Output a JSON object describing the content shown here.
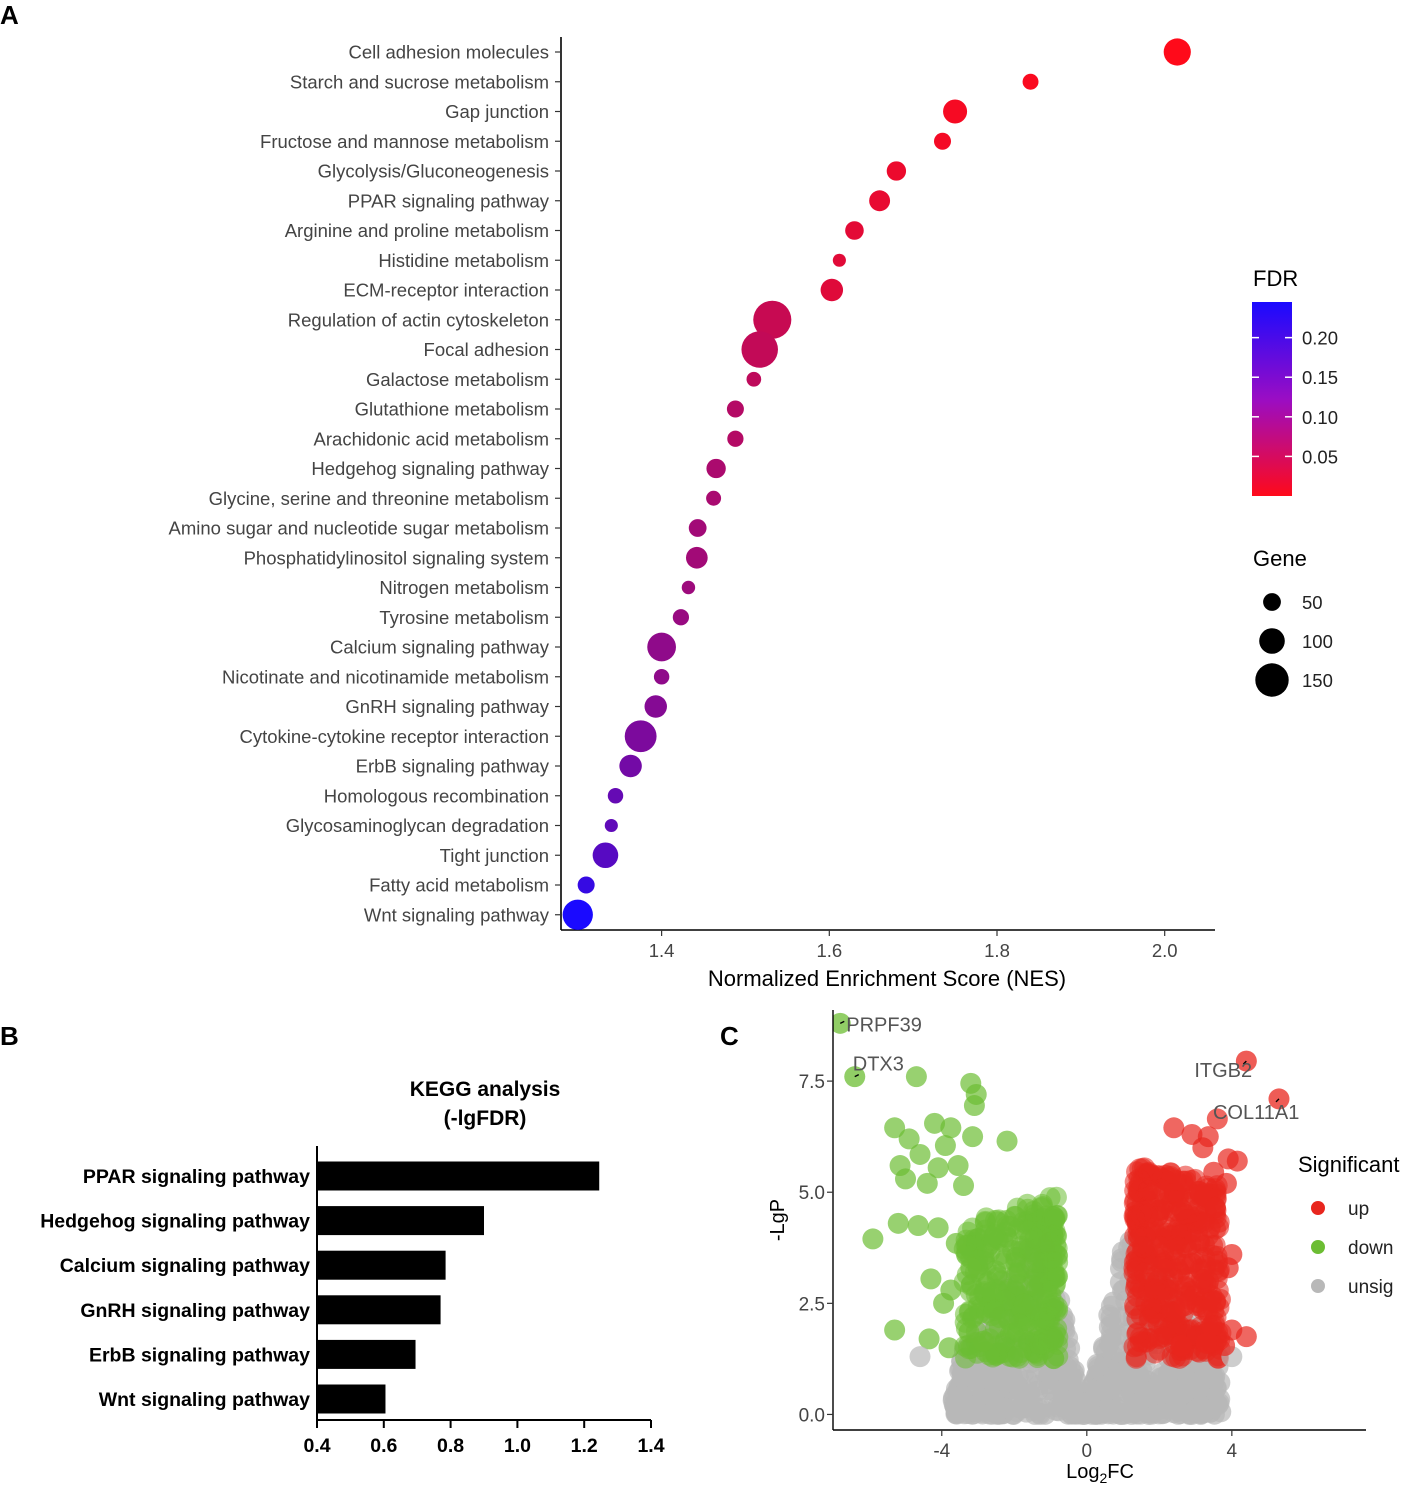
{
  "chart_data": [
    {
      "panel": "A",
      "type": "scatter",
      "subtype": "dot-plot",
      "xlabel": "Normalized Enrichment Score (NES)",
      "xlim": [
        1.28,
        2.06
      ],
      "xticks": [
        1.4,
        1.6,
        1.8,
        2.0
      ],
      "xtick_labels": [
        "1.4",
        "1.6",
        "1.8",
        "2.0"
      ],
      "colors": {
        "low_fdr": "#ff0a1a",
        "high_fdr": "#1a0aff"
      },
      "fdr_range": [
        0.0,
        0.245
      ],
      "legend_fdr": {
        "title": "FDR",
        "ticks": [
          0.2,
          0.15,
          0.1,
          0.05
        ],
        "tick_labels": [
          "0.20",
          "0.15",
          "0.10",
          "0.05"
        ]
      },
      "legend_gene": {
        "title": "Gene",
        "sizes": [
          50,
          100,
          150
        ],
        "labels": [
          "50",
          "100",
          "150"
        ]
      },
      "legend_placement": "right",
      "pathways": [
        {
          "name": "Cell adhesion molecules",
          "nes": 2.015,
          "fdr": 0.0,
          "gene": 110
        },
        {
          "name": "Starch and sucrose metabolism",
          "nes": 1.84,
          "fdr": 0.005,
          "gene": 38
        },
        {
          "name": "Gap junction",
          "nes": 1.75,
          "fdr": 0.01,
          "gene": 90
        },
        {
          "name": "Fructose and mannose metabolism",
          "nes": 1.735,
          "fdr": 0.012,
          "gene": 45
        },
        {
          "name": "Glycolysis/Gluconeogenesis",
          "nes": 1.68,
          "fdr": 0.02,
          "gene": 60
        },
        {
          "name": "PPAR signaling pathway",
          "nes": 1.66,
          "fdr": 0.025,
          "gene": 70
        },
        {
          "name": "Arginine and proline metabolism",
          "nes": 1.63,
          "fdr": 0.03,
          "gene": 55
        },
        {
          "name": "Histidine metabolism",
          "nes": 1.612,
          "fdr": 0.032,
          "gene": 20
        },
        {
          "name": "ECM-receptor interaction",
          "nes": 1.603,
          "fdr": 0.034,
          "gene": 80
        },
        {
          "name": "Regulation of actin cytoskeleton",
          "nes": 1.532,
          "fdr": 0.06,
          "gene": 180
        },
        {
          "name": "Focal adhesion",
          "nes": 1.517,
          "fdr": 0.065,
          "gene": 170
        },
        {
          "name": "Galactose metabolism",
          "nes": 1.51,
          "fdr": 0.07,
          "gene": 30
        },
        {
          "name": "Glutathione metabolism",
          "nes": 1.488,
          "fdr": 0.08,
          "gene": 45
        },
        {
          "name": "Arachidonic acid metabolism",
          "nes": 1.488,
          "fdr": 0.08,
          "gene": 40
        },
        {
          "name": "Hedgehog signaling pathway",
          "nes": 1.465,
          "fdr": 0.09,
          "gene": 60
        },
        {
          "name": "Glycine, serine and threonine metabolism",
          "nes": 1.462,
          "fdr": 0.092,
          "gene": 32
        },
        {
          "name": "Amino sugar and nucleotide sugar metabolism",
          "nes": 1.443,
          "fdr": 0.1,
          "gene": 50
        },
        {
          "name": "Phosphatidylinositol signaling system",
          "nes": 1.442,
          "fdr": 0.1,
          "gene": 75
        },
        {
          "name": "Nitrogen metabolism",
          "nes": 1.432,
          "fdr": 0.105,
          "gene": 22
        },
        {
          "name": "Tyrosine metabolism",
          "nes": 1.423,
          "fdr": 0.11,
          "gene": 40
        },
        {
          "name": "Calcium signaling pathway",
          "nes": 1.4,
          "fdr": 0.12,
          "gene": 120
        },
        {
          "name": "Nicotinate and nicotinamide metabolism",
          "nes": 1.4,
          "fdr": 0.12,
          "gene": 35
        },
        {
          "name": "GnRH signaling pathway",
          "nes": 1.393,
          "fdr": 0.13,
          "gene": 80
        },
        {
          "name": "Cytokine-cytokine receptor interaction",
          "nes": 1.375,
          "fdr": 0.14,
          "gene": 140
        },
        {
          "name": "ErbB signaling pathway",
          "nes": 1.363,
          "fdr": 0.15,
          "gene": 80
        },
        {
          "name": "Homologous recombination",
          "nes": 1.345,
          "fdr": 0.165,
          "gene": 35
        },
        {
          "name": "Glycosaminoglycan degradation",
          "nes": 1.34,
          "fdr": 0.17,
          "gene": 20
        },
        {
          "name": "Tight junction",
          "nes": 1.333,
          "fdr": 0.18,
          "gene": 100
        },
        {
          "name": "Fatty acid metabolism",
          "nes": 1.31,
          "fdr": 0.215,
          "gene": 45
        },
        {
          "name": "Wnt signaling pathway",
          "nes": 1.3,
          "fdr": 0.245,
          "gene": 130
        }
      ]
    },
    {
      "panel": "B",
      "type": "bar",
      "orientation": "horizontal",
      "title": "KEGG analysis\n(-lgFDR)",
      "title_lines": [
        "KEGG analysis",
        "(-lgFDR)"
      ],
      "xlim": [
        0.4,
        1.4
      ],
      "xticks": [
        0.4,
        0.6,
        0.8,
        1.0,
        1.2,
        1.4
      ],
      "xtick_labels": [
        "0.4",
        "0.6",
        "0.8",
        "1.0",
        "1.2",
        "1.4"
      ],
      "categories": [
        "PPAR signaling pathway",
        "Hedgehog signaling pathway",
        "Calcium signaling pathway",
        "GnRH signaling pathway",
        "ErbB signaling pathway",
        "Wnt signaling pathway"
      ],
      "values": [
        1.245,
        0.9,
        0.785,
        0.77,
        0.695,
        0.605
      ],
      "bar_color": "#000000"
    },
    {
      "panel": "C",
      "type": "scatter",
      "subtype": "volcano",
      "xlabel_base": "Log",
      "xlabel_sub": "2",
      "xlabel_tail": "FC",
      "ylabel": "-LgP",
      "xlim": [
        -7.0,
        7.7
      ],
      "ylim": [
        -0.35,
        9.1
      ],
      "xticks": [
        -4,
        0,
        4
      ],
      "xtick_labels": [
        "-4",
        "0",
        "4"
      ],
      "yticks": [
        0.0,
        2.5,
        5.0,
        7.5
      ],
      "ytick_labels": [
        "0.0",
        "2.5",
        "5.0",
        "7.5"
      ],
      "colors": {
        "up": "#e8261e",
        "down": "#6cbd33",
        "unsig": "#b8b8b8"
      },
      "legend": {
        "title": "Significant",
        "entries": [
          {
            "key": "up",
            "label": "up"
          },
          {
            "key": "down",
            "label": "down"
          },
          {
            "key": "unsig",
            "label": "unsig"
          }
        ],
        "placement": "right"
      },
      "labeled_genes": [
        {
          "name": "PRPF39",
          "x": -6.8,
          "y": 8.8,
          "group": "down"
        },
        {
          "name": "DTX3",
          "x": -6.4,
          "y": 7.6,
          "group": "down"
        },
        {
          "name": "ITGB2",
          "x": 4.4,
          "y": 7.95,
          "group": "up"
        },
        {
          "name": "COL11A1",
          "x": 5.3,
          "y": 7.1,
          "group": "up"
        }
      ],
      "notable_points": [
        {
          "x": -4.7,
          "y": 7.6,
          "group": "down"
        },
        {
          "x": -3.2,
          "y": 7.45,
          "group": "down"
        },
        {
          "x": -3.05,
          "y": 7.2,
          "group": "down"
        },
        {
          "x": -3.1,
          "y": 6.95,
          "group": "down"
        },
        {
          "x": -5.3,
          "y": 6.45,
          "group": "down"
        },
        {
          "x": -4.2,
          "y": 6.55,
          "group": "down"
        },
        {
          "x": -3.75,
          "y": 6.45,
          "group": "down"
        },
        {
          "x": -3.15,
          "y": 6.25,
          "group": "down"
        },
        {
          "x": -2.2,
          "y": 6.15,
          "group": "down"
        },
        {
          "x": -4.9,
          "y": 6.2,
          "group": "down"
        },
        {
          "x": -3.9,
          "y": 6.05,
          "group": "down"
        },
        {
          "x": -4.6,
          "y": 5.85,
          "group": "down"
        },
        {
          "x": -5.15,
          "y": 5.6,
          "group": "down"
        },
        {
          "x": -4.1,
          "y": 5.55,
          "group": "down"
        },
        {
          "x": -3.55,
          "y": 5.6,
          "group": "down"
        },
        {
          "x": -5.0,
          "y": 5.3,
          "group": "down"
        },
        {
          "x": -4.4,
          "y": 5.2,
          "group": "down"
        },
        {
          "x": -3.4,
          "y": 5.15,
          "group": "down"
        },
        {
          "x": -5.2,
          "y": 4.3,
          "group": "down"
        },
        {
          "x": -4.65,
          "y": 4.25,
          "group": "down"
        },
        {
          "x": -4.1,
          "y": 4.2,
          "group": "down"
        },
        {
          "x": -3.6,
          "y": 3.85,
          "group": "down"
        },
        {
          "x": -5.9,
          "y": 3.95,
          "group": "down"
        },
        {
          "x": -4.3,
          "y": 3.05,
          "group": "down"
        },
        {
          "x": -3.2,
          "y": 3.3,
          "group": "down"
        },
        {
          "x": -3.75,
          "y": 2.8,
          "group": "down"
        },
        {
          "x": -3.95,
          "y": 2.5,
          "group": "down"
        },
        {
          "x": -5.3,
          "y": 1.9,
          "group": "down"
        },
        {
          "x": -4.35,
          "y": 1.7,
          "group": "down"
        },
        {
          "x": -3.8,
          "y": 1.5,
          "group": "down"
        },
        {
          "x": -3.25,
          "y": 1.85,
          "group": "down"
        },
        {
          "x": -2.85,
          "y": 1.65,
          "group": "down"
        },
        {
          "x": -4.6,
          "y": 1.3,
          "group": "unsig"
        },
        {
          "x": 4.0,
          "y": 1.3,
          "group": "unsig"
        },
        {
          "x": 3.6,
          "y": 6.65,
          "group": "up"
        },
        {
          "x": 3.35,
          "y": 6.25,
          "group": "up"
        },
        {
          "x": 2.9,
          "y": 6.3,
          "group": "up"
        },
        {
          "x": 2.4,
          "y": 6.45,
          "group": "up"
        },
        {
          "x": 3.2,
          "y": 6.0,
          "group": "up"
        },
        {
          "x": 3.9,
          "y": 5.75,
          "group": "up"
        },
        {
          "x": 4.15,
          "y": 5.7,
          "group": "up"
        },
        {
          "x": 3.5,
          "y": 5.45,
          "group": "up"
        },
        {
          "x": 3.85,
          "y": 5.2,
          "group": "up"
        },
        {
          "x": 2.65,
          "y": 5.25,
          "group": "up"
        },
        {
          "x": 3.15,
          "y": 4.95,
          "group": "up"
        },
        {
          "x": 3.55,
          "y": 4.65,
          "group": "up"
        },
        {
          "x": 3.4,
          "y": 4.2,
          "group": "up"
        },
        {
          "x": 3.1,
          "y": 3.9,
          "group": "up"
        },
        {
          "x": 4.0,
          "y": 3.6,
          "group": "up"
        },
        {
          "x": 3.9,
          "y": 3.3,
          "group": "up"
        },
        {
          "x": 2.9,
          "y": 3.4,
          "group": "up"
        },
        {
          "x": 3.2,
          "y": 2.95,
          "group": "up"
        },
        {
          "x": 3.55,
          "y": 2.55,
          "group": "up"
        },
        {
          "x": 2.7,
          "y": 2.45,
          "group": "up"
        },
        {
          "x": 3.45,
          "y": 2.0,
          "group": "up"
        },
        {
          "x": 4.0,
          "y": 1.9,
          "group": "up"
        },
        {
          "x": 4.4,
          "y": 1.75,
          "group": "up"
        },
        {
          "x": 3.8,
          "y": 1.55,
          "group": "up"
        },
        {
          "x": 3.3,
          "y": 1.6,
          "group": "up"
        },
        {
          "x": 2.6,
          "y": 1.55,
          "group": "up"
        }
      ]
    }
  ],
  "panel_labels": {
    "a": "A",
    "b": "B",
    "c": "C"
  }
}
